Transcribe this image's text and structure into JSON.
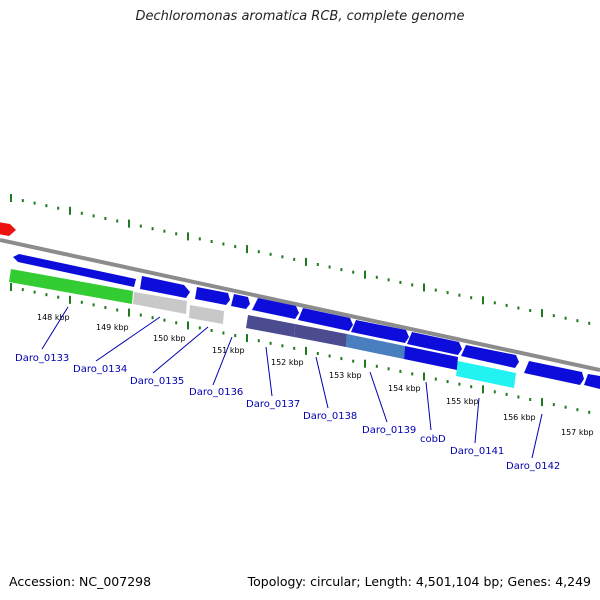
{
  "title": "Dechloromonas aromatica RCB, complete genome",
  "footer": {
    "accession": "Accession: NC_007298",
    "summary": "Topology: circular; Length: 4,501,104 bp; Genes: 4,249"
  },
  "colors": {
    "backbone": "#8c8c8c",
    "tick": "#1f7a1f",
    "gene_label": "#0000b0",
    "cds": "#0d0ddb",
    "red_feature": "#ee1111",
    "green_feature": "#33cc33",
    "gray_feature": "#c8c8c8",
    "purple_feature": "#4b4b8f",
    "steelblue_feature": "#4a7fbf",
    "cyan_feature": "#22f2f2"
  },
  "kbp_labels": [
    "148 kbp",
    "149 kbp",
    "150 kbp",
    "151 kbp",
    "152 kbp",
    "153 kbp",
    "154 kbp",
    "155 kbp",
    "156 kbp",
    "157 kbp"
  ],
  "gene_labels": [
    "Daro_0133",
    "Daro_0134",
    "Daro_0135",
    "Daro_0136",
    "Daro_0137",
    "Daro_0138",
    "Daro_0139",
    "cobD",
    "Daro_0141",
    "Daro_0142"
  ]
}
